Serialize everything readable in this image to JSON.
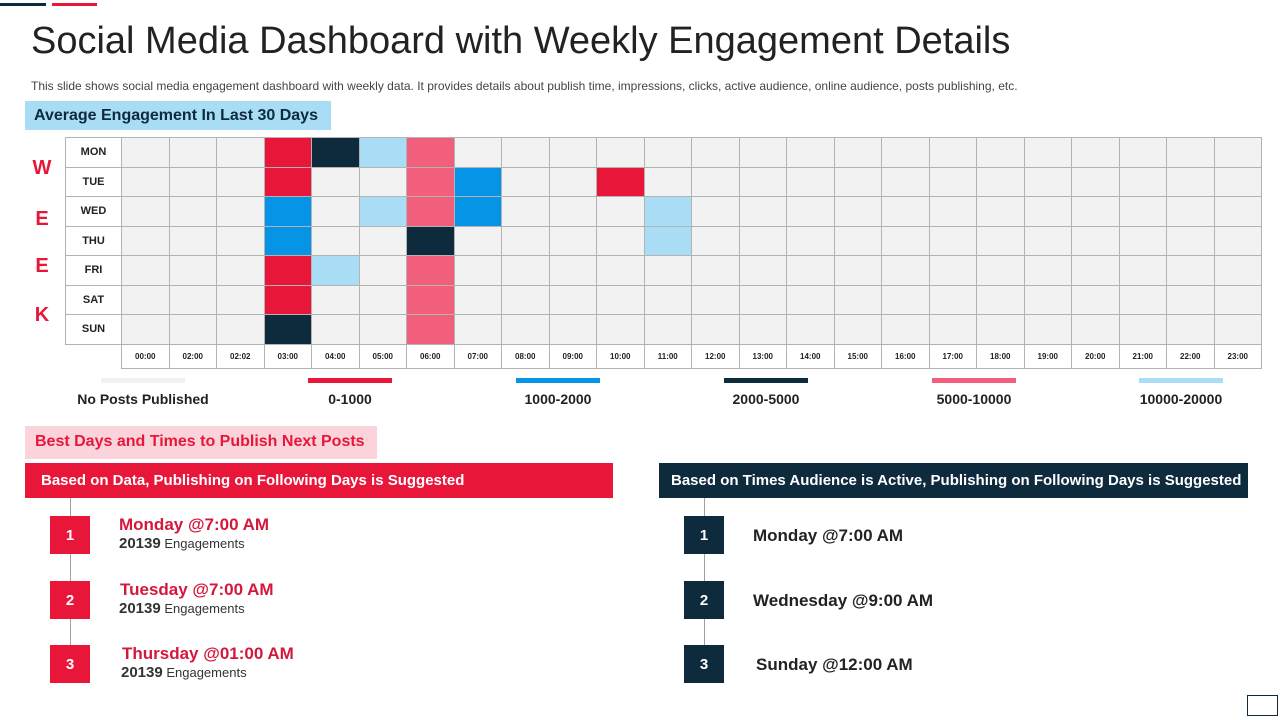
{
  "title": "Social Media Dashboard with Weekly Engagement Details",
  "subtitle": "This slide shows social media engagement dashboard with weekly data. It provides details about publish time, impressions, clicks, active audience, online audience, posts publishing, etc.",
  "heatmap": {
    "header": "Average Engagement In Last 30 Days",
    "week_letters": [
      "W",
      "E",
      "E",
      "K"
    ],
    "days": [
      "MON",
      "TUE",
      "WED",
      "THU",
      "FRI",
      "SAT",
      "SUN"
    ],
    "hours": [
      "00:00",
      "02:00",
      "02:02",
      "03:00",
      "04:00",
      "05:00",
      "06:00",
      "07:00",
      "08:00",
      "09:00",
      "10:00",
      "11:00",
      "12:00",
      "13:00",
      "14:00",
      "15:00",
      "16:00",
      "17:00",
      "18:00",
      "19:00",
      "20:00",
      "21:00",
      "22:00",
      "23:00"
    ],
    "category_colors": [
      "#f2f2f2",
      "#e8173a",
      "#0594e6",
      "#0e2a3d",
      "#f25f7c",
      "#a9ddf5"
    ],
    "cells": [
      [
        0,
        0,
        0,
        1,
        3,
        5,
        4,
        0,
        0,
        0,
        0,
        0,
        0,
        0,
        0,
        0,
        0,
        0,
        0,
        0,
        0,
        0,
        0,
        0
      ],
      [
        0,
        0,
        0,
        1,
        0,
        0,
        4,
        2,
        0,
        0,
        1,
        0,
        0,
        0,
        0,
        0,
        0,
        0,
        0,
        0,
        0,
        0,
        0,
        0
      ],
      [
        0,
        0,
        0,
        2,
        0,
        5,
        4,
        2,
        0,
        0,
        0,
        5,
        0,
        0,
        0,
        0,
        0,
        0,
        0,
        0,
        0,
        0,
        0,
        0
      ],
      [
        0,
        0,
        0,
        2,
        0,
        0,
        3,
        0,
        0,
        0,
        0,
        5,
        0,
        0,
        0,
        0,
        0,
        0,
        0,
        0,
        0,
        0,
        0,
        0
      ],
      [
        0,
        0,
        0,
        1,
        5,
        0,
        4,
        0,
        0,
        0,
        0,
        0,
        0,
        0,
        0,
        0,
        0,
        0,
        0,
        0,
        0,
        0,
        0,
        0
      ],
      [
        0,
        0,
        0,
        1,
        0,
        0,
        4,
        0,
        0,
        0,
        0,
        0,
        0,
        0,
        0,
        0,
        0,
        0,
        0,
        0,
        0,
        0,
        0,
        0
      ],
      [
        0,
        0,
        0,
        3,
        0,
        0,
        4,
        0,
        0,
        0,
        0,
        0,
        0,
        0,
        0,
        0,
        0,
        0,
        0,
        0,
        0,
        0,
        0,
        0
      ]
    ],
    "legend": [
      {
        "label": "No Posts  Published",
        "color": "#f2f2f2"
      },
      {
        "label": "0-1000",
        "color": "#e8173a"
      },
      {
        "label": "1000-2000",
        "color": "#0594e6"
      },
      {
        "label": "2000-5000",
        "color": "#0e2a3d"
      },
      {
        "label": "5000-10000",
        "color": "#f25f7c"
      },
      {
        "label": "10000-20000",
        "color": "#a9ddf5"
      }
    ]
  },
  "best_times": {
    "header": "Best Days and Times to Publish Next Posts",
    "data_banner": "Based on Data, Publishing on Following Days is  Suggested",
    "audience_banner": "Based on Times Audience is Active, Publishing on Following Days is Suggested",
    "data_items": [
      {
        "num": "1",
        "day": "Monday @7:00 AM",
        "count": "20139",
        "unit": "Engagements"
      },
      {
        "num": "2",
        "day": "Tuesday @7:00 AM",
        "count": "20139",
        "unit": "Engagements"
      },
      {
        "num": "3",
        "day": "Thursday @01:00 AM",
        "count": "20139",
        "unit": "Engagements"
      }
    ],
    "audience_items": [
      {
        "num": "1",
        "day": "Monday @7:00 AM"
      },
      {
        "num": "2",
        "day": "Wednesday @9:00 AM"
      },
      {
        "num": "3",
        "day": "Sunday @12:00 AM"
      }
    ]
  }
}
